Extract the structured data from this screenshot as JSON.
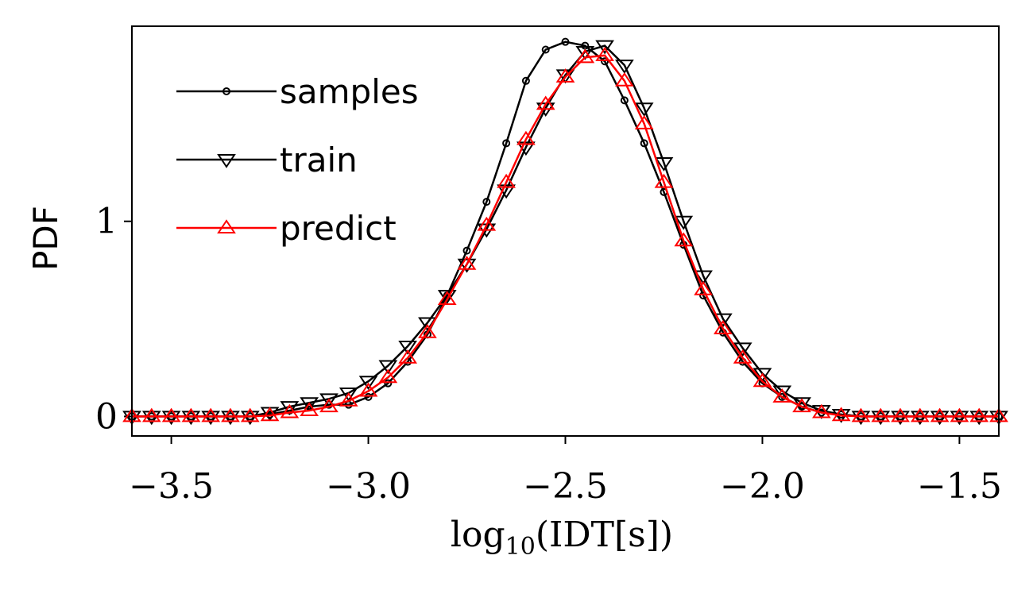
{
  "chart_data": {
    "type": "line",
    "x": [
      -3.6,
      -3.55,
      -3.5,
      -3.45,
      -3.4,
      -3.35,
      -3.3,
      -3.25,
      -3.2,
      -3.15,
      -3.1,
      -3.05,
      -3.0,
      -2.95,
      -2.9,
      -2.85,
      -2.8,
      -2.75,
      -2.7,
      -2.65,
      -2.6,
      -2.55,
      -2.5,
      -2.45,
      -2.4,
      -2.35,
      -2.3,
      -2.25,
      -2.2,
      -2.15,
      -2.1,
      -2.05,
      -2.0,
      -1.95,
      -1.9,
      -1.85,
      -1.8,
      -1.75,
      -1.7,
      -1.65,
      -1.6,
      -1.55,
      -1.5,
      -1.45,
      -1.4
    ],
    "series": [
      {
        "name": "samples",
        "color": "#000000",
        "marker": "circle",
        "values": [
          0,
          0,
          0,
          0,
          0,
          0,
          0,
          0.01,
          0.03,
          0.05,
          0.06,
          0.06,
          0.1,
          0.17,
          0.28,
          0.42,
          0.62,
          0.85,
          1.1,
          1.4,
          1.72,
          1.88,
          1.92,
          1.9,
          1.82,
          1.62,
          1.4,
          1.15,
          0.88,
          0.62,
          0.43,
          0.28,
          0.17,
          0.1,
          0.05,
          0.02,
          0.01,
          0,
          0,
          0,
          0,
          0,
          0,
          0,
          0
        ]
      },
      {
        "name": "train",
        "color": "#000000",
        "marker": "triangle-down",
        "values": [
          0,
          0,
          0,
          0,
          0,
          0,
          0,
          0.02,
          0.05,
          0.07,
          0.09,
          0.12,
          0.18,
          0.26,
          0.36,
          0.48,
          0.62,
          0.78,
          0.96,
          1.16,
          1.38,
          1.58,
          1.75,
          1.87,
          1.9,
          1.8,
          1.58,
          1.3,
          1.0,
          0.72,
          0.5,
          0.35,
          0.22,
          0.13,
          0.07,
          0.03,
          0.01,
          0,
          0,
          0,
          0,
          0,
          0,
          0,
          0
        ]
      },
      {
        "name": "predict",
        "color": "#ff0000",
        "marker": "triangle-up",
        "values": [
          0,
          0,
          0,
          0,
          0,
          0,
          0,
          0.005,
          0.02,
          0.03,
          0.05,
          0.08,
          0.13,
          0.2,
          0.3,
          0.43,
          0.6,
          0.78,
          0.98,
          1.2,
          1.42,
          1.6,
          1.74,
          1.84,
          1.85,
          1.72,
          1.5,
          1.2,
          0.9,
          0.65,
          0.45,
          0.3,
          0.18,
          0.1,
          0.05,
          0.02,
          0.005,
          0,
          0,
          0,
          0,
          0,
          0,
          0,
          0
        ]
      }
    ],
    "x_label": {
      "base": "log",
      "sub": "10",
      "arg": "(IDT[s])"
    },
    "y_label": "PDF",
    "xlim": [
      -3.6,
      -1.4
    ],
    "ylim": [
      -0.1,
      2.0
    ],
    "xticks": [
      {
        "value": -3.5,
        "label": "−3.5"
      },
      {
        "value": -3.0,
        "label": "−3.0"
      },
      {
        "value": -2.5,
        "label": "−2.5"
      },
      {
        "value": -2.0,
        "label": "−2.0"
      },
      {
        "value": -1.5,
        "label": "−1.5"
      }
    ],
    "yticks": [
      0,
      1
    ],
    "legend": "upper left"
  }
}
